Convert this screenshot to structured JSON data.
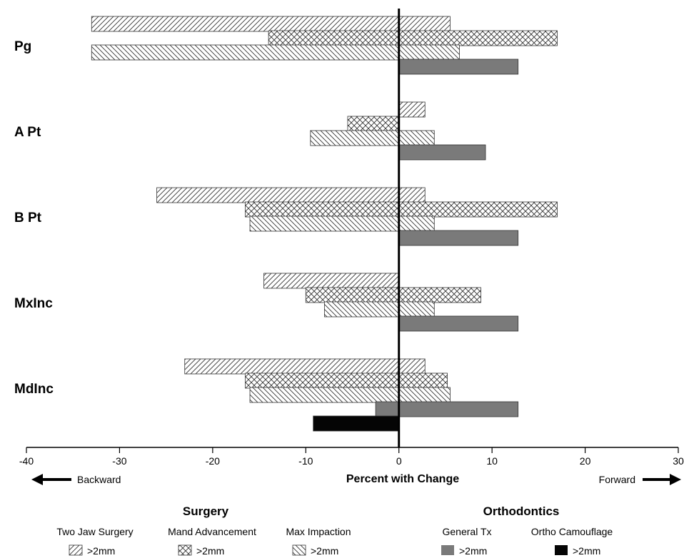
{
  "chart_data": {
    "type": "bar",
    "orientation": "horizontal",
    "categories": [
      "Pg",
      "A Pt",
      "B Pt",
      "MxInc",
      "MdInc"
    ],
    "xlabel": "Percent with Change",
    "xlim": [
      -40,
      30
    ],
    "xticks": [
      -40,
      -30,
      -20,
      -10,
      0,
      10,
      20,
      30
    ],
    "grid": false,
    "direction_labels": {
      "left": "Backward",
      "right": "Forward"
    },
    "group_titles": {
      "surgery": "Surgery",
      "orthodontics": "Orthodontics"
    },
    "series": [
      {
        "name": "Two Jaw Surgery",
        "group": "surgery",
        "legend_value": ">2mm",
        "pattern": "diag-right",
        "segments": [
          [
            [
              -33,
              5.5
            ]
          ],
          [
            [
              0,
              2.8
            ]
          ],
          [
            [
              -26,
              2.8
            ]
          ],
          [
            [
              -14.5,
              0
            ]
          ],
          [
            [
              -23,
              2.8
            ]
          ]
        ]
      },
      {
        "name": "Mand Advancement",
        "group": "surgery",
        "legend_value": ">2mm",
        "pattern": "crosshatch",
        "segments": [
          [
            [
              -14,
              17
            ]
          ],
          [
            [
              -5.5,
              0
            ]
          ],
          [
            [
              -16.5,
              17
            ]
          ],
          [
            [
              -10,
              8.8
            ]
          ],
          [
            [
              -16.5,
              5.2
            ]
          ]
        ]
      },
      {
        "name": "Max Impaction",
        "group": "surgery",
        "legend_value": ">2mm",
        "pattern": "diag-left",
        "segments": [
          [
            [
              -33,
              6.5
            ]
          ],
          [
            [
              -9.5,
              3.8
            ]
          ],
          [
            [
              -16,
              3.8
            ]
          ],
          [
            [
              -8,
              3.8
            ]
          ],
          [
            [
              -16,
              5.5
            ]
          ]
        ]
      },
      {
        "name": "General Tx",
        "group": "orthodontics",
        "legend_value": ">2mm",
        "pattern": "gray",
        "segments": [
          [
            [
              0,
              12.8
            ]
          ],
          [
            [
              0,
              9.3
            ]
          ],
          [
            [
              0,
              12.8
            ]
          ],
          [
            [
              0,
              12.8
            ]
          ],
          [
            [
              -2.5,
              12.8
            ]
          ]
        ]
      },
      {
        "name": "Ortho Camouflage",
        "group": "orthodontics",
        "legend_value": ">2mm",
        "pattern": "black",
        "segments": [
          [],
          [],
          [],
          [],
          [
            [
              -9.2,
              0
            ]
          ]
        ]
      }
    ]
  }
}
